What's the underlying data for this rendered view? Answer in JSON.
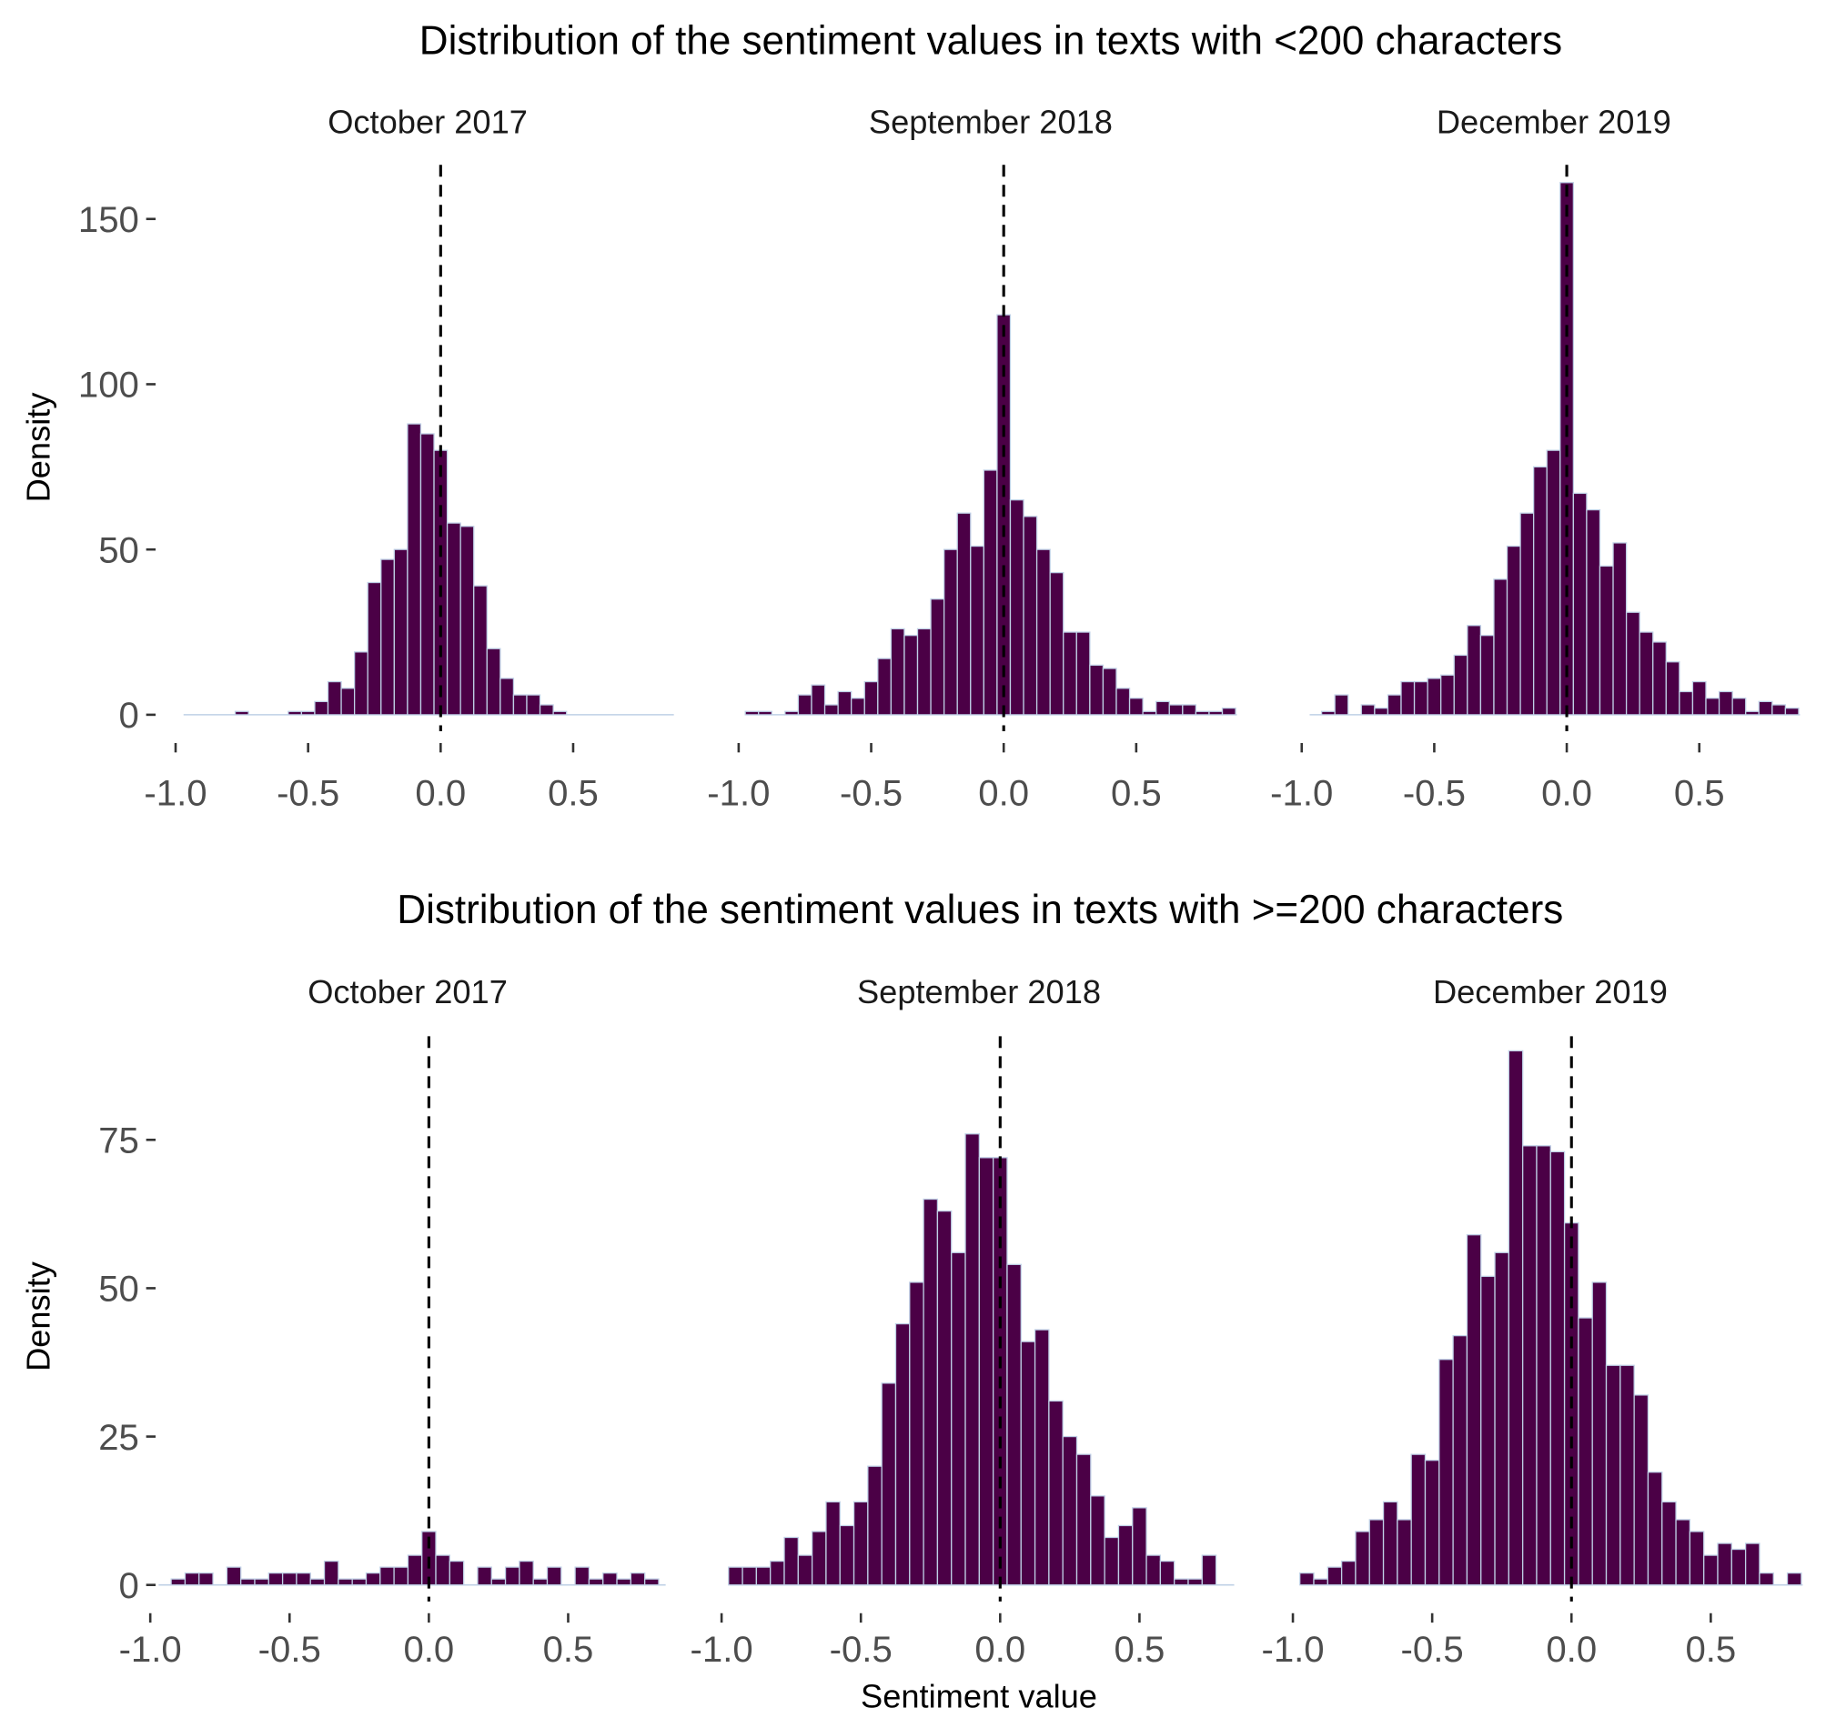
{
  "figure": {
    "row_titles": [
      "Distribution of the sentiment values in texts with <200 characters",
      "Distribution of the sentiment values in texts with >=200 characters"
    ],
    "xlabel": "Sentiment value",
    "ylabel": "Density",
    "colors": {
      "bar_fill": "#4b0046",
      "bar_outline": "#bfd0e6",
      "reference_line": "#000000"
    }
  },
  "chart_data": [
    {
      "type": "bar",
      "facet": "October 2017",
      "row": 0,
      "x": [
        -0.95,
        -0.9,
        -0.85,
        -0.8,
        -0.75,
        -0.7,
        -0.65,
        -0.6,
        -0.55,
        -0.5,
        -0.45,
        -0.4,
        -0.35,
        -0.3,
        -0.25,
        -0.2,
        -0.15,
        -0.1,
        -0.05,
        0,
        0.05,
        0.1,
        0.15,
        0.2,
        0.25,
        0.3,
        0.35,
        0.4,
        0.45,
        0.5,
        0.55,
        0.6,
        0.65,
        0.7,
        0.75,
        0.8,
        0.85
      ],
      "values": [
        0,
        0,
        0,
        0,
        1,
        0,
        0,
        0,
        1,
        1,
        4,
        10,
        8,
        19,
        40,
        47,
        50,
        88,
        85,
        80,
        58,
        57,
        39,
        20,
        11,
        6,
        6,
        3,
        1,
        0,
        0,
        0,
        0,
        0,
        0,
        0,
        0
      ],
      "bin_width": 0.05,
      "xlim": [
        -0.97,
        0.88
      ],
      "ylim": [
        0,
        165
      ],
      "xticks": [
        "-1.0",
        "-0.5",
        "0.0",
        "0.5"
      ],
      "yticks": [
        "0",
        "50",
        "100",
        "150"
      ],
      "reference_line_x": 0,
      "xlabel": "",
      "ylabel": "Density"
    },
    {
      "type": "bar",
      "facet": "September 2018",
      "row": 0,
      "x": [
        -0.95,
        -0.9,
        -0.85,
        -0.8,
        -0.75,
        -0.7,
        -0.65,
        -0.6,
        -0.55,
        -0.5,
        -0.45,
        -0.4,
        -0.35,
        -0.3,
        -0.25,
        -0.2,
        -0.15,
        -0.1,
        -0.05,
        0,
        0.05,
        0.1,
        0.15,
        0.2,
        0.25,
        0.3,
        0.35,
        0.4,
        0.45,
        0.5,
        0.55,
        0.6,
        0.65,
        0.7,
        0.75,
        0.8,
        0.85
      ],
      "values": [
        1,
        1,
        0,
        1,
        6,
        9,
        3,
        7,
        5,
        10,
        17,
        26,
        24,
        26,
        35,
        50,
        61,
        51,
        74,
        121,
        65,
        60,
        50,
        43,
        25,
        25,
        15,
        14,
        8,
        5,
        1,
        4,
        3,
        3,
        1,
        1,
        2
      ],
      "bin_width": 0.05,
      "xlim": [
        -0.97,
        0.88
      ],
      "ylim": [
        0,
        165
      ],
      "xticks": [
        "-1.0",
        "-0.5",
        "0.0",
        "0.5"
      ],
      "yticks": [],
      "reference_line_x": 0
    },
    {
      "type": "bar",
      "facet": "December 2019",
      "row": 0,
      "x": [
        -0.95,
        -0.9,
        -0.85,
        -0.8,
        -0.75,
        -0.7,
        -0.65,
        -0.6,
        -0.55,
        -0.5,
        -0.45,
        -0.4,
        -0.35,
        -0.3,
        -0.25,
        -0.2,
        -0.15,
        -0.1,
        -0.05,
        0,
        0.05,
        0.1,
        0.15,
        0.2,
        0.25,
        0.3,
        0.35,
        0.4,
        0.45,
        0.5,
        0.55,
        0.6,
        0.65,
        0.7,
        0.75,
        0.8,
        0.85
      ],
      "values": [
        0,
        1,
        6,
        0,
        3,
        2,
        6,
        10,
        10,
        11,
        12,
        18,
        27,
        24,
        41,
        51,
        61,
        75,
        80,
        161,
        67,
        62,
        45,
        52,
        31,
        25,
        22,
        16,
        7,
        10,
        5,
        7,
        5,
        1,
        4,
        3,
        2
      ],
      "bin_width": 0.05,
      "xlim": [
        -0.97,
        0.88
      ],
      "ylim": [
        0,
        165
      ],
      "xticks": [
        "-1.0",
        "-0.5",
        "0.0",
        "0.5"
      ],
      "yticks": [],
      "reference_line_x": 0
    },
    {
      "type": "bar",
      "facet": "October 2017",
      "row": 1,
      "x": [
        -0.95,
        -0.9,
        -0.85,
        -0.8,
        -0.75,
        -0.7,
        -0.65,
        -0.6,
        -0.55,
        -0.5,
        -0.45,
        -0.4,
        -0.35,
        -0.3,
        -0.25,
        -0.2,
        -0.15,
        -0.1,
        -0.05,
        0,
        0.05,
        0.1,
        0.15,
        0.2,
        0.25,
        0.3,
        0.35,
        0.4,
        0.45,
        0.5,
        0.55,
        0.6,
        0.65,
        0.7,
        0.75,
        0.8,
        0.85
      ],
      "values": [
        0,
        1,
        2,
        2,
        0,
        3,
        1,
        1,
        2,
        2,
        2,
        1,
        4,
        1,
        1,
        2,
        3,
        3,
        5,
        9,
        5,
        4,
        0,
        3,
        1,
        3,
        4,
        1,
        3,
        0,
        3,
        1,
        2,
        1,
        2,
        1,
        0
      ],
      "bin_width": 0.05,
      "xlim": [
        -0.97,
        0.85
      ],
      "ylim": [
        0,
        92
      ],
      "xticks": [
        "-1.0",
        "-0.5",
        "0.0",
        "0.5"
      ],
      "yticks": [
        "0",
        "25",
        "50",
        "75"
      ],
      "reference_line_x": 0,
      "ylabel": "Density"
    },
    {
      "type": "bar",
      "facet": "September 2018",
      "row": 1,
      "x": [
        -0.95,
        -0.9,
        -0.85,
        -0.8,
        -0.75,
        -0.7,
        -0.65,
        -0.6,
        -0.55,
        -0.5,
        -0.45,
        -0.4,
        -0.35,
        -0.3,
        -0.25,
        -0.2,
        -0.15,
        -0.1,
        -0.05,
        0,
        0.05,
        0.1,
        0.15,
        0.2,
        0.25,
        0.3,
        0.35,
        0.4,
        0.45,
        0.5,
        0.55,
        0.6,
        0.65,
        0.7,
        0.75,
        0.8,
        0.85
      ],
      "values": [
        3,
        3,
        3,
        4,
        8,
        5,
        9,
        14,
        10,
        14,
        20,
        34,
        44,
        51,
        65,
        63,
        56,
        76,
        72,
        72,
        54,
        41,
        43,
        31,
        25,
        22,
        15,
        8,
        10,
        13,
        5,
        4,
        1,
        1,
        5,
        0,
        0
      ],
      "bin_width": 0.05,
      "xlim": [
        -0.97,
        0.84
      ],
      "ylim": [
        0,
        92
      ],
      "xticks": [
        "-1.0",
        "-0.5",
        "0.0",
        "0.5"
      ],
      "yticks": [],
      "reference_line_x": 0,
      "xlabel": "Sentiment value"
    },
    {
      "type": "bar",
      "facet": "December 2019",
      "row": 1,
      "x": [
        -0.95,
        -0.9,
        -0.85,
        -0.8,
        -0.75,
        -0.7,
        -0.65,
        -0.6,
        -0.55,
        -0.5,
        -0.45,
        -0.4,
        -0.35,
        -0.3,
        -0.25,
        -0.2,
        -0.15,
        -0.1,
        -0.05,
        0,
        0.05,
        0.1,
        0.15,
        0.2,
        0.25,
        0.3,
        0.35,
        0.4,
        0.45,
        0.5,
        0.55,
        0.6,
        0.65,
        0.7,
        0.75,
        0.8,
        0.85
      ],
      "values": [
        2,
        1,
        3,
        4,
        9,
        11,
        14,
        11,
        22,
        21,
        38,
        42,
        59,
        52,
        56,
        90,
        74,
        74,
        73,
        61,
        45,
        51,
        37,
        37,
        32,
        19,
        14,
        11,
        9,
        5,
        7,
        6,
        7,
        2,
        0,
        2,
        0
      ],
      "bin_width": 0.05,
      "xlim": [
        -0.97,
        0.83
      ],
      "ylim": [
        0,
        92
      ],
      "xticks": [
        "-1.0",
        "-0.5",
        "0.0",
        "0.5"
      ],
      "yticks": [],
      "reference_line_x": 0
    }
  ]
}
